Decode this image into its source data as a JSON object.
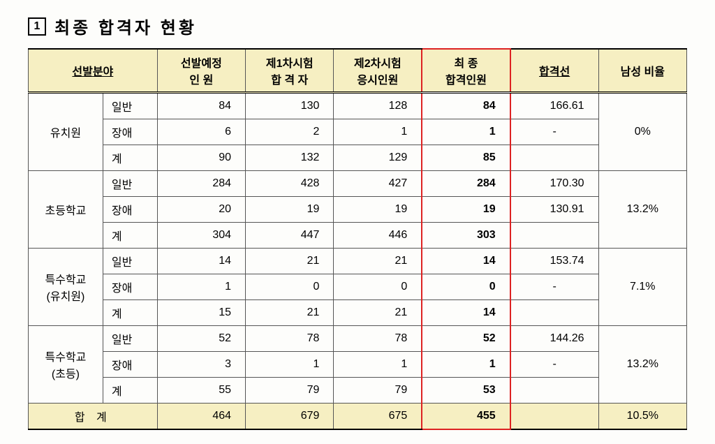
{
  "heading": {
    "num": "1",
    "title": "최종 합격자 현황"
  },
  "header": {
    "c0": "선발분야",
    "c1a": "선발예정",
    "c1b": "인     원",
    "c2a": "제1차시험",
    "c2b": "합 격 자",
    "c3a": "제2차시험",
    "c3b": "응시인원",
    "c4a": "최     종",
    "c4b": "합격인원",
    "c5": "합격선",
    "c6": "남성 비율"
  },
  "groups": [
    {
      "name": "유치원",
      "ratio": "0%",
      "rows": [
        {
          "sub": "일반",
          "a": "84",
          "b": "130",
          "c": "128",
          "d": "84",
          "e": "166.61"
        },
        {
          "sub": "장애",
          "a": "6",
          "b": "2",
          "c": "1",
          "d": "1",
          "e": "-"
        },
        {
          "sub": "계",
          "a": "90",
          "b": "132",
          "c": "129",
          "d": "85",
          "e": ""
        }
      ]
    },
    {
      "name": "초등학교",
      "ratio": "13.2%",
      "rows": [
        {
          "sub": "일반",
          "a": "284",
          "b": "428",
          "c": "427",
          "d": "284",
          "e": "170.30"
        },
        {
          "sub": "장애",
          "a": "20",
          "b": "19",
          "c": "19",
          "d": "19",
          "e": "130.91"
        },
        {
          "sub": "계",
          "a": "304",
          "b": "447",
          "c": "446",
          "d": "303",
          "e": ""
        }
      ]
    },
    {
      "name": "특수학교\n(유치원)",
      "ratio": "7.1%",
      "rows": [
        {
          "sub": "일반",
          "a": "14",
          "b": "21",
          "c": "21",
          "d": "14",
          "e": "153.74"
        },
        {
          "sub": "장애",
          "a": "1",
          "b": "0",
          "c": "0",
          "d": "0",
          "e": "-"
        },
        {
          "sub": "계",
          "a": "15",
          "b": "21",
          "c": "21",
          "d": "14",
          "e": ""
        }
      ]
    },
    {
      "name": "특수학교\n(초등)",
      "ratio": "13.2%",
      "rows": [
        {
          "sub": "일반",
          "a": "52",
          "b": "78",
          "c": "78",
          "d": "52",
          "e": "144.26"
        },
        {
          "sub": "장애",
          "a": "3",
          "b": "1",
          "c": "1",
          "d": "1",
          "e": "-"
        },
        {
          "sub": "계",
          "a": "55",
          "b": "79",
          "c": "79",
          "d": "53",
          "e": ""
        }
      ]
    }
  ],
  "total": {
    "label": "합 계",
    "a": "464",
    "b": "679",
    "c": "675",
    "d": "455",
    "e": "",
    "ratio": "10.5%"
  },
  "colors": {
    "highlight_border": "#d22",
    "header_bg": "#f6efc2"
  }
}
